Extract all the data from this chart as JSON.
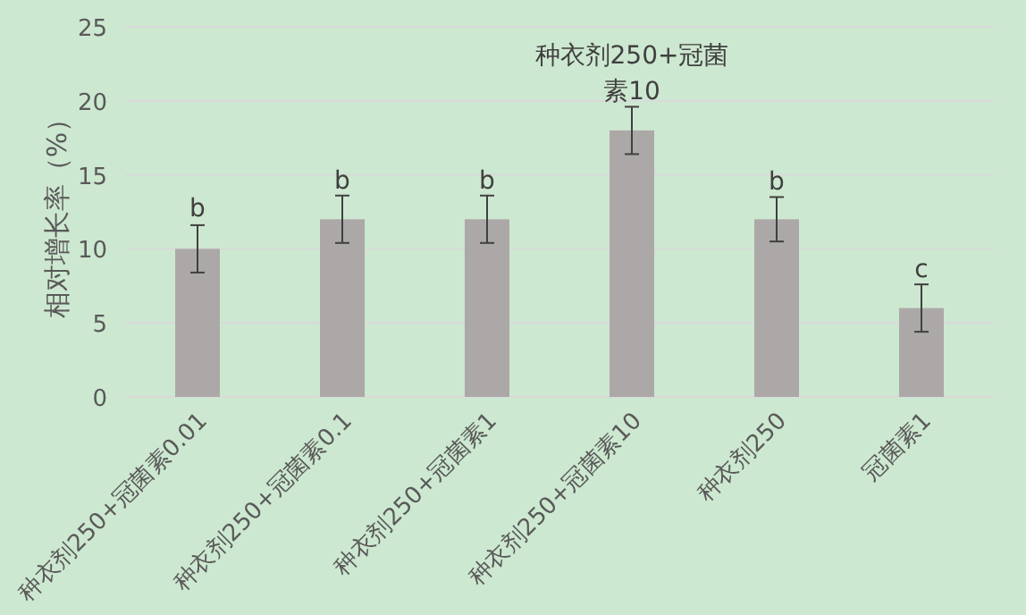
{
  "chart_data": {
    "type": "bar",
    "ylabel": "相对增长率（%）",
    "categories": [
      "种衣剂250+冠菌素0.01",
      "种衣剂250+冠菌素0.1",
      "种衣剂250+冠菌素1",
      "种衣剂250+冠菌素10",
      "种衣剂250",
      "冠菌素1"
    ],
    "values": [
      10,
      12,
      12,
      18,
      12,
      6
    ],
    "errors": [
      1.6,
      1.6,
      1.6,
      1.6,
      1.5,
      1.6
    ],
    "color": "#aca8a8",
    "ylim": [
      0,
      25
    ],
    "yticks": [
      0,
      5,
      10,
      15,
      20,
      25
    ],
    "grid": "y",
    "annotations": [
      {
        "text": "b",
        "x": "种衣剂250+冠菌素0.01",
        "y": 11.7
      },
      {
        "text": "b",
        "x": "种衣剂250+冠菌素0.1",
        "y": 13.6
      },
      {
        "text": "b",
        "x": "种衣剂250+冠菌素1",
        "y": 13.6
      },
      {
        "text": "种衣剂250+冠菌素10",
        "x": "种衣剂250+冠菌素10",
        "y": 19.6
      },
      {
        "text": "b",
        "x": "种衣剂250",
        "y": 13.5
      },
      {
        "text": "c",
        "x": "冠菌素1",
        "y": 7.6
      }
    ]
  }
}
